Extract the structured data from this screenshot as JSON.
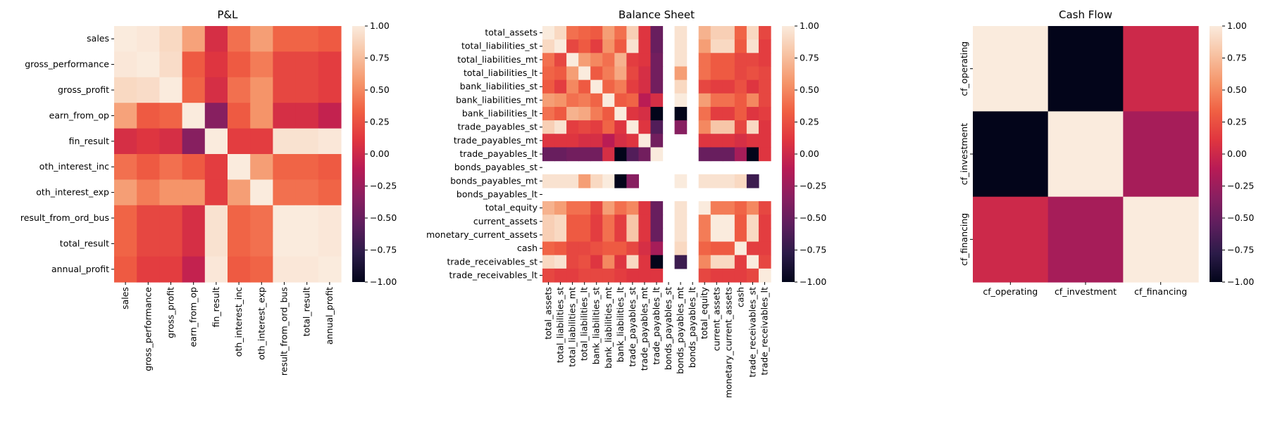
{
  "chart_data": [
    {
      "type": "heatmap",
      "title": "P&L",
      "labels": [
        "sales",
        "gross_performance",
        "gross_profit",
        "earn_from_op",
        "fin_result",
        "oth_interest_inc",
        "oth_interest_exp",
        "result_from_ord_bus",
        "total_result",
        "annual_profit"
      ],
      "values": [
        [
          1.0,
          0.98,
          0.9,
          0.62,
          0.05,
          0.4,
          0.6,
          0.35,
          0.35,
          0.3
        ],
        [
          0.98,
          1.0,
          0.92,
          0.3,
          0.1,
          0.3,
          0.45,
          0.2,
          0.2,
          0.15
        ],
        [
          0.9,
          0.92,
          1.0,
          0.35,
          0.05,
          0.4,
          0.55,
          0.2,
          0.2,
          0.15
        ],
        [
          0.62,
          0.3,
          0.35,
          1.0,
          -0.35,
          0.3,
          0.55,
          0.05,
          0.05,
          -0.05
        ],
        [
          0.05,
          0.1,
          0.05,
          -0.35,
          1.0,
          0.15,
          0.15,
          0.95,
          0.95,
          0.98
        ],
        [
          0.4,
          0.3,
          0.4,
          0.3,
          0.15,
          1.0,
          0.6,
          0.35,
          0.35,
          0.3
        ],
        [
          0.6,
          0.45,
          0.55,
          0.55,
          0.15,
          0.6,
          1.0,
          0.4,
          0.4,
          0.35
        ],
        [
          0.35,
          0.2,
          0.2,
          0.05,
          0.95,
          0.35,
          0.4,
          1.0,
          1.0,
          0.98
        ],
        [
          0.35,
          0.2,
          0.2,
          0.05,
          0.95,
          0.35,
          0.4,
          1.0,
          1.0,
          0.98
        ],
        [
          0.3,
          0.15,
          0.15,
          -0.05,
          0.98,
          0.3,
          0.35,
          0.98,
          0.98,
          1.0
        ]
      ],
      "vmin": -1,
      "vmax": 1,
      "colorbar_ticks": [
        1.0,
        0.75,
        0.5,
        0.25,
        0.0,
        -0.25,
        -0.5,
        -0.75,
        -1.0
      ],
      "colorbar_tick_labels": [
        "1.00",
        "0.75",
        "0.50",
        "0.25",
        "0.00",
        "−0.25",
        "−0.50",
        "−0.75",
        "−1.00"
      ]
    },
    {
      "type": "heatmap",
      "title": "Balance Sheet",
      "labels": [
        "total_assets",
        "total_liabilities_st",
        "total_liabilities_mt",
        "total_liabilities_lt",
        "bank_liabilities_st",
        "bank_liabilities_mt",
        "bank_liabilities_lt",
        "trade_payables_st",
        "trade_payables_mt",
        "trade_payables_lt",
        "bonds_payables_st",
        "bonds_payables_mt",
        "bonds_payables_lt",
        "total_equity",
        "current_assets",
        "monetary_current_assets",
        "cash",
        "trade_receivables_st",
        "trade_receivables_lt"
      ],
      "values": [
        [
          1.0,
          0.9,
          0.4,
          0.35,
          0.3,
          0.6,
          0.4,
          0.85,
          0.1,
          -0.5,
          null,
          0.95,
          null,
          0.7,
          0.85,
          0.85,
          0.35,
          0.9,
          0.2
        ],
        [
          0.9,
          1.0,
          0.2,
          0.3,
          0.15,
          0.55,
          0.3,
          0.95,
          0.1,
          -0.5,
          null,
          0.95,
          null,
          0.6,
          0.9,
          0.9,
          0.3,
          0.95,
          0.15
        ],
        [
          0.4,
          0.2,
          1.0,
          0.6,
          0.5,
          0.4,
          0.7,
          0.15,
          0.1,
          -0.45,
          null,
          0.95,
          null,
          0.4,
          0.3,
          0.3,
          0.2,
          0.2,
          0.15
        ],
        [
          0.35,
          0.3,
          0.6,
          1.0,
          0.3,
          0.45,
          0.65,
          0.2,
          0.05,
          -0.45,
          null,
          0.6,
          null,
          0.4,
          0.3,
          0.3,
          0.2,
          0.25,
          0.2
        ],
        [
          0.3,
          0.15,
          0.5,
          0.3,
          1.0,
          0.35,
          0.45,
          0.15,
          0.05,
          -0.45,
          null,
          0.9,
          null,
          0.2,
          0.15,
          0.15,
          0.25,
          0.1,
          0.2
        ],
        [
          0.6,
          0.55,
          0.4,
          0.45,
          0.35,
          1.0,
          0.3,
          0.35,
          -0.1,
          0.05,
          null,
          1.0,
          null,
          0.6,
          0.4,
          0.4,
          0.3,
          0.5,
          0.2
        ],
        [
          0.4,
          0.3,
          0.7,
          0.65,
          0.45,
          0.3,
          1.0,
          0.1,
          0.05,
          -1.0,
          null,
          -1.0,
          null,
          0.4,
          0.15,
          0.15,
          0.3,
          0.1,
          0.15
        ],
        [
          0.85,
          0.95,
          0.15,
          0.2,
          0.15,
          0.35,
          0.1,
          1.0,
          0.1,
          -0.6,
          null,
          -0.35,
          null,
          0.5,
          0.8,
          0.8,
          0.2,
          0.9,
          0.1
        ],
        [
          0.1,
          0.1,
          0.1,
          0.05,
          0.05,
          -0.1,
          0.05,
          0.1,
          1.0,
          -0.45,
          null,
          null,
          null,
          0.1,
          0.1,
          0.1,
          0.05,
          0.1,
          0.1
        ],
        [
          -0.5,
          -0.5,
          -0.45,
          -0.45,
          -0.45,
          0.05,
          -1.0,
          -0.6,
          -0.45,
          1.0,
          null,
          null,
          null,
          -0.5,
          -0.5,
          -0.5,
          -0.2,
          -1.0,
          0.1
        ],
        [
          null,
          null,
          null,
          null,
          null,
          null,
          null,
          null,
          null,
          null,
          null,
          null,
          null,
          null,
          null,
          null,
          null,
          null,
          null
        ],
        [
          0.95,
          0.95,
          0.95,
          0.6,
          0.9,
          1.0,
          -1.0,
          -0.35,
          null,
          null,
          null,
          1.0,
          null,
          0.95,
          0.95,
          0.95,
          0.9,
          -0.7,
          null
        ],
        [
          null,
          null,
          null,
          null,
          null,
          null,
          null,
          null,
          null,
          null,
          null,
          null,
          null,
          null,
          null,
          null,
          null,
          null,
          null
        ],
        [
          0.7,
          0.6,
          0.4,
          0.4,
          0.2,
          0.6,
          0.4,
          0.5,
          0.1,
          -0.5,
          null,
          0.95,
          null,
          1.0,
          0.45,
          0.45,
          0.35,
          0.5,
          0.2
        ],
        [
          0.85,
          0.9,
          0.3,
          0.3,
          0.15,
          0.4,
          0.15,
          0.8,
          0.1,
          -0.5,
          null,
          0.95,
          null,
          0.45,
          1.0,
          1.0,
          0.3,
          0.9,
          0.15
        ],
        [
          0.85,
          0.9,
          0.3,
          0.3,
          0.15,
          0.4,
          0.15,
          0.8,
          0.1,
          -0.5,
          null,
          0.95,
          null,
          0.45,
          1.0,
          1.0,
          0.3,
          0.9,
          0.15
        ],
        [
          0.35,
          0.3,
          0.2,
          0.2,
          0.25,
          0.3,
          0.3,
          0.2,
          0.05,
          -0.2,
          null,
          0.9,
          null,
          0.35,
          0.3,
          0.3,
          1.0,
          0.15,
          0.15
        ],
        [
          0.9,
          0.95,
          0.2,
          0.25,
          0.1,
          0.5,
          0.1,
          0.9,
          0.1,
          -1.0,
          null,
          -0.7,
          null,
          0.5,
          0.9,
          0.9,
          0.15,
          1.0,
          0.2
        ],
        [
          0.2,
          0.15,
          0.15,
          0.2,
          0.2,
          0.2,
          0.15,
          0.1,
          0.1,
          0.1,
          null,
          null,
          null,
          0.2,
          0.15,
          0.15,
          0.15,
          0.2,
          1.0
        ]
      ],
      "vmin": -1,
      "vmax": 1,
      "colorbar_ticks": [
        1.0,
        0.75,
        0.5,
        0.25,
        0.0,
        -0.25,
        -0.5,
        -0.75,
        -1.0
      ],
      "colorbar_tick_labels": [
        "1.00",
        "0.75",
        "0.50",
        "0.25",
        "0.00",
        "−0.25",
        "−0.50",
        "−0.75",
        "−1.00"
      ]
    },
    {
      "type": "heatmap",
      "title": "Cash Flow",
      "labels": [
        "cf_operating",
        "cf_investment",
        "cf_financing"
      ],
      "values": [
        [
          1.0,
          -1.0,
          0.0
        ],
        [
          -1.0,
          1.0,
          -0.2
        ],
        [
          0.0,
          -0.2,
          1.0
        ]
      ],
      "vmin": -1,
      "vmax": 1,
      "colorbar_ticks": [
        1.0,
        0.75,
        0.5,
        0.25,
        0.0,
        -0.25,
        -0.5,
        -0.75,
        -1.0
      ],
      "colorbar_tick_labels": [
        "1.00",
        "0.75",
        "0.50",
        "0.25",
        "0.00",
        "−0.25",
        "−0.50",
        "−0.75",
        "−1.00"
      ]
    }
  ],
  "colormap": "rocket",
  "colormap_stops": [
    "#03051a",
    "#2b1b48",
    "#5c1e5d",
    "#8a1f60",
    "#b81b55",
    "#e0363f",
    "#f06043",
    "#f5956a",
    "#f7c2a2",
    "#faebdd"
  ]
}
